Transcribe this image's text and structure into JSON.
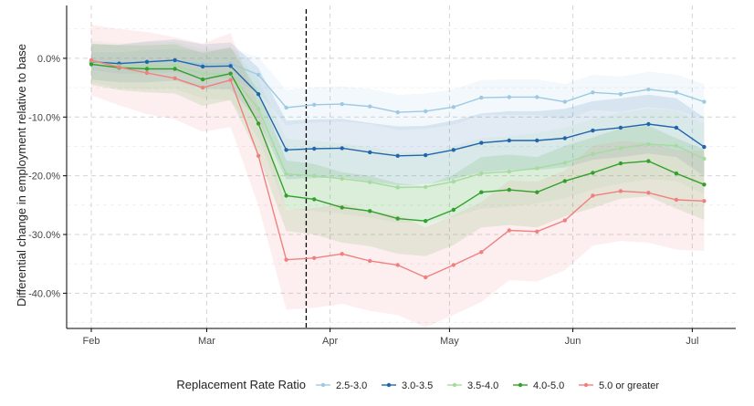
{
  "chart_data": {
    "type": "line",
    "xlabel": "",
    "ylabel": "Differential change in employment relative to base",
    "x_tick_labels": [
      "Feb",
      "Mar",
      "Apr",
      "May",
      "Jun",
      "Jul"
    ],
    "x_tick_positions": [
      0,
      29,
      60,
      90,
      121,
      151
    ],
    "x": [
      0,
      7,
      14,
      21,
      28,
      35,
      42,
      49,
      56,
      63,
      70,
      77,
      84,
      91,
      98,
      105,
      112,
      119,
      126,
      133,
      140,
      147,
      154
    ],
    "vline_x": 54,
    "ylim": [
      -46,
      9
    ],
    "y_ticks": [
      0,
      -10,
      -20,
      -30,
      -40
    ],
    "y_tick_labels": [
      "0.0%",
      "-10.0%",
      "-20.0%",
      "-30.0%",
      "-40.0%"
    ],
    "grid": true,
    "legend": {
      "title": "Replacement Rate Ratio",
      "position": "bottom"
    },
    "series": [
      {
        "name": "2.5-3.0",
        "color": "#9ecae1",
        "values": [
          -0.5,
          -0.8,
          -0.6,
          -0.4,
          -1.0,
          -0.9,
          -2.8,
          -8.4,
          -7.9,
          -7.8,
          -8.2,
          -9.2,
          -9.0,
          -8.3,
          -6.7,
          -6.6,
          -6.6,
          -7.4,
          -5.8,
          -6.1,
          -5.3,
          -5.8,
          -7.4
        ],
        "band": [
          1.5,
          1.8,
          2.0,
          2.0,
          2.2,
          2.5,
          3.0,
          3.0,
          3.0,
          3.0,
          3.0,
          3.0,
          3.0,
          3.0,
          3.0,
          3.0,
          3.0,
          3.0,
          3.0,
          3.0,
          3.0,
          3.0,
          3.0
        ]
      },
      {
        "name": "3.0-3.5",
        "color": "#2166ac",
        "values": [
          -0.6,
          -0.9,
          -0.6,
          -0.3,
          -1.4,
          -1.3,
          -6.1,
          -15.6,
          -15.4,
          -15.3,
          -16.0,
          -16.6,
          -16.5,
          -15.6,
          -14.4,
          -14.0,
          -14.0,
          -13.6,
          -12.3,
          -11.8,
          -11.2,
          -11.8,
          -15.1
        ],
        "band": [
          3.0,
          3.2,
          3.5,
          3.5,
          3.8,
          4.0,
          4.5,
          5.0,
          5.0,
          5.0,
          5.0,
          5.0,
          5.0,
          5.0,
          5.0,
          5.0,
          5.0,
          5.0,
          5.0,
          5.0,
          5.0,
          5.0,
          5.0
        ]
      },
      {
        "name": "3.5-4.0",
        "color": "#a6dba0",
        "values": [
          -0.5,
          -1.3,
          -1.3,
          -1.2,
          -2.6,
          -2.7,
          -8.6,
          -19.7,
          -20.0,
          -20.5,
          -21.1,
          -22.0,
          -21.9,
          -21.0,
          -19.6,
          -19.3,
          -18.7,
          -17.8,
          -16.3,
          -15.3,
          -14.6,
          -14.9,
          -17.1
        ],
        "band": [
          3.5,
          3.8,
          4.0,
          4.0,
          4.2,
          4.5,
          5.0,
          6.0,
          6.0,
          6.0,
          6.0,
          6.0,
          6.0,
          6.0,
          6.0,
          6.0,
          6.0,
          6.0,
          6.0,
          6.0,
          6.0,
          6.0,
          6.0
        ]
      },
      {
        "name": "4.0-5.0",
        "color": "#33a02c",
        "values": [
          -1.0,
          -1.6,
          -1.8,
          -1.8,
          -3.6,
          -2.6,
          -11.1,
          -23.4,
          -24.0,
          -25.4,
          -26.0,
          -27.3,
          -27.7,
          -25.8,
          -22.8,
          -22.4,
          -22.8,
          -20.9,
          -19.5,
          -17.9,
          -17.5,
          -19.6,
          -21.5
        ],
        "band": [
          3.5,
          3.8,
          4.0,
          4.2,
          4.5,
          4.5,
          5.5,
          6.0,
          6.0,
          6.0,
          6.0,
          6.0,
          6.0,
          6.0,
          6.0,
          6.0,
          6.0,
          6.0,
          6.0,
          6.0,
          6.0,
          6.0,
          6.0
        ]
      },
      {
        "name": "5.0 or greater",
        "color": "#f08080",
        "values": [
          -0.3,
          -1.5,
          -2.5,
          -3.4,
          -5.0,
          -3.7,
          -16.6,
          -34.3,
          -34.0,
          -33.3,
          -34.5,
          -35.2,
          -37.3,
          -35.2,
          -33.0,
          -29.3,
          -29.5,
          -27.6,
          -23.4,
          -22.6,
          -22.9,
          -24.1,
          -24.3
        ],
        "band": [
          6.0,
          6.5,
          7.0,
          7.0,
          7.5,
          8.0,
          8.5,
          8.5,
          8.5,
          8.5,
          8.5,
          8.5,
          8.5,
          8.5,
          8.5,
          8.5,
          8.5,
          8.5,
          8.5,
          8.5,
          8.5,
          8.5,
          8.5
        ]
      }
    ]
  }
}
